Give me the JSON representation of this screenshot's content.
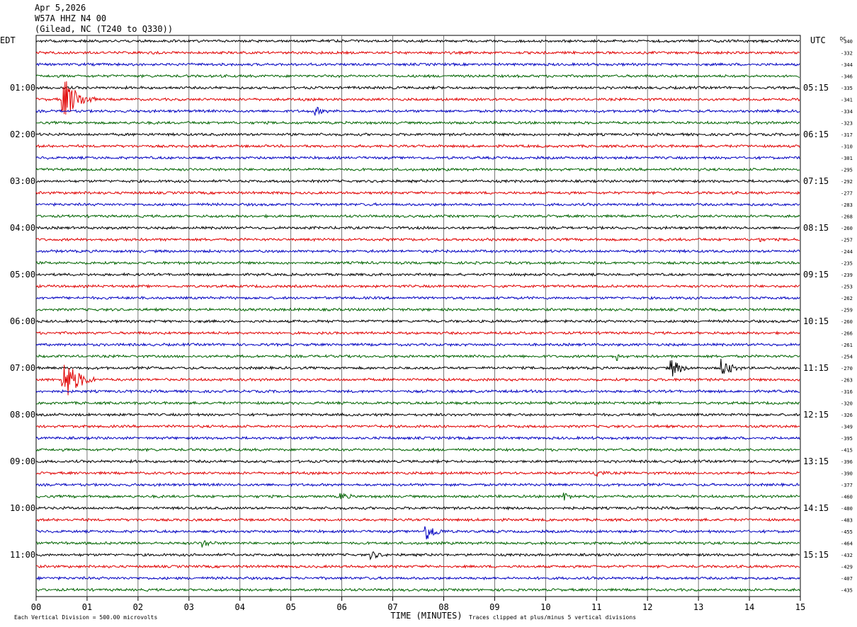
{
  "header": {
    "date": "Apr 5,2026",
    "station": "W57A HHZ N4 00",
    "location": "(Gilead, NC (T240 to Q330))"
  },
  "chart_data": {
    "type": "helicorder",
    "x_label": "TIME (MINUTES)",
    "x_ticks": [
      "00",
      "01",
      "02",
      "03",
      "04",
      "05",
      "06",
      "07",
      "08",
      "09",
      "10",
      "11",
      "12",
      "13",
      "14",
      "15"
    ],
    "xlim": [
      0,
      15
    ],
    "left_axis_label": "EDT",
    "right_axis_label": "UTC",
    "dc_label": "DC",
    "left_hour_labels": [
      "01:00",
      "02:00",
      "03:00",
      "04:00",
      "05:00",
      "06:00",
      "07:00",
      "08:00",
      "09:00",
      "10:00",
      "11:00"
    ],
    "right_hour_labels": [
      "05:15",
      "06:15",
      "07:15",
      "08:15",
      "09:15",
      "10:15",
      "11:15",
      "12:15",
      "13:15",
      "14:15",
      "15:15"
    ],
    "dc_offsets": [
      -340,
      -332,
      -344,
      -346,
      -335,
      -341,
      -334,
      -323,
      -317,
      -310,
      -301,
      -295,
      -292,
      -277,
      -283,
      -268,
      -260,
      -257,
      -244,
      -235,
      -239,
      -253,
      -262,
      -259,
      -260,
      -266,
      -261,
      -254,
      -270,
      -263,
      -316,
      -320,
      -326,
      -349,
      -395,
      -415,
      -396,
      -390,
      -377,
      -460,
      -480,
      -483,
      -455,
      -464,
      -432,
      -429,
      -407,
      -435
    ],
    "trace_colors": [
      "#000000",
      "#e00000",
      "#0000c0",
      "#006400"
    ],
    "rows_per_hour": 4,
    "events": [
      {
        "row": 5,
        "minute": 0.6,
        "amplitude": "large"
      },
      {
        "row": 6,
        "minute": 5.5,
        "amplitude": "small"
      },
      {
        "row": 17,
        "minute": 14.2,
        "amplitude": "spike"
      },
      {
        "row": 27,
        "minute": 11.4,
        "amplitude": "spike"
      },
      {
        "row": 28,
        "minute": 12.5,
        "amplitude": "medium"
      },
      {
        "row": 28,
        "minute": 13.5,
        "amplitude": "medium"
      },
      {
        "row": 29,
        "minute": 0.6,
        "amplitude": "large"
      },
      {
        "row": 37,
        "minute": 11.0,
        "amplitude": "small"
      },
      {
        "row": 39,
        "minute": 6.0,
        "amplitude": "small"
      },
      {
        "row": 39,
        "minute": 10.4,
        "amplitude": "small"
      },
      {
        "row": 42,
        "minute": 7.7,
        "amplitude": "medium"
      },
      {
        "row": 43,
        "minute": 3.3,
        "amplitude": "small"
      },
      {
        "row": 44,
        "minute": 6.6,
        "amplitude": "small"
      }
    ]
  },
  "footer": {
    "scale_note": "Each Vertical Division =  500.00 microvolts",
    "clip_note": "Traces clipped at plus/minus 5 vertical divisions"
  }
}
